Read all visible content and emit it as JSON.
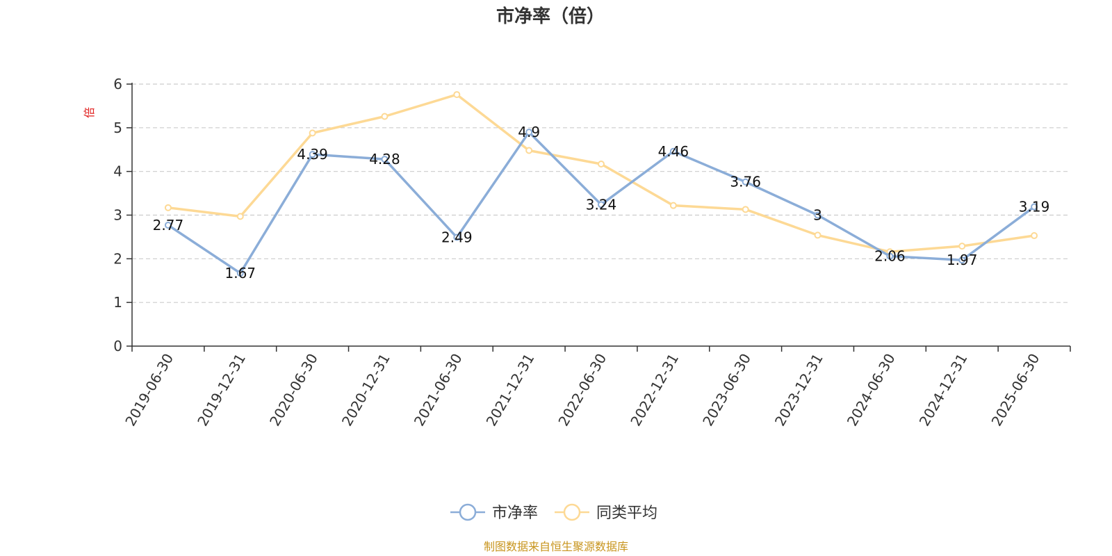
{
  "chart_data": {
    "type": "line",
    "title": "市净率（倍）",
    "ylabel": "倍",
    "ylim": [
      0,
      6
    ],
    "yticks": [
      0,
      1,
      2,
      3,
      4,
      5,
      6
    ],
    "grid": true,
    "legend_position": "bottom-center",
    "categories": [
      "2019-06-30",
      "2019-12-31",
      "2020-06-30",
      "2020-12-31",
      "2021-06-30",
      "2021-12-31",
      "2022-06-30",
      "2022-12-31",
      "2023-06-30",
      "2023-12-31",
      "2024-06-30",
      "2024-12-31",
      "2025-06-30"
    ],
    "series": [
      {
        "name": "市净率",
        "color": "#8badd8",
        "show_labels": true,
        "values": [
          2.77,
          1.67,
          4.39,
          4.28,
          2.49,
          4.9,
          3.24,
          4.46,
          3.76,
          3,
          2.06,
          1.97,
          3.19
        ]
      },
      {
        "name": "同类平均",
        "color": "#fdd995",
        "show_labels": false,
        "values": [
          3.17,
          2.97,
          4.88,
          5.26,
          5.76,
          4.48,
          4.17,
          3.22,
          3.13,
          2.54,
          2.16,
          2.29,
          2.53
        ]
      }
    ]
  },
  "source_note": "制图数据来自恒生聚源数据库",
  "colors": {
    "axis": "#333333",
    "grid": "#cccccc",
    "unit_label": "#e0201f",
    "source": "#c8951e"
  }
}
